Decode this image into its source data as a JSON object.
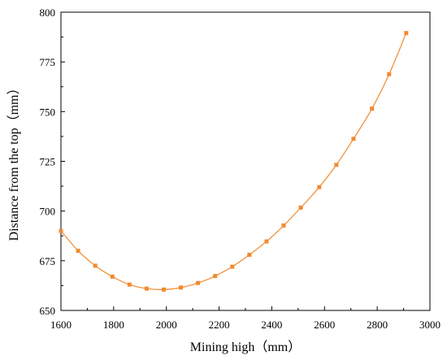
{
  "chart_data": {
    "type": "line",
    "xlabel": "Mining high（mm）",
    "ylabel": "Distance from the top（mm）",
    "xlim": [
      1600,
      3000
    ],
    "ylim": [
      650,
      800
    ],
    "x_ticks": [
      1600,
      1800,
      2000,
      2200,
      2400,
      2600,
      2800,
      3000
    ],
    "y_ticks": [
      650,
      675,
      700,
      725,
      750,
      775,
      800
    ],
    "x_tick_labels": [
      "1600",
      "1800",
      "2000",
      "2200",
      "2400",
      "2600",
      "2800",
      "3000"
    ],
    "y_tick_labels": [
      "650",
      "675",
      "700",
      "725",
      "750",
      "775",
      "800"
    ],
    "grid": false,
    "series": [
      {
        "color": "#F28A2E",
        "marker": "square",
        "smooth": true,
        "x": [
          1600,
          1665,
          1730,
          1795,
          1860,
          1925,
          1990,
          2055,
          2120,
          2185,
          2250,
          2315,
          2380,
          2445,
          2510,
          2580,
          2645,
          2710,
          2780,
          2845,
          2910
        ],
        "y": [
          690,
          680,
          672.5,
          667,
          663,
          661,
          660.5,
          661.5,
          663.8,
          667.3,
          672,
          678,
          684.7,
          692.7,
          701.7,
          712,
          723.2,
          736.3,
          751.5,
          768.8,
          789.5
        ]
      }
    ]
  }
}
